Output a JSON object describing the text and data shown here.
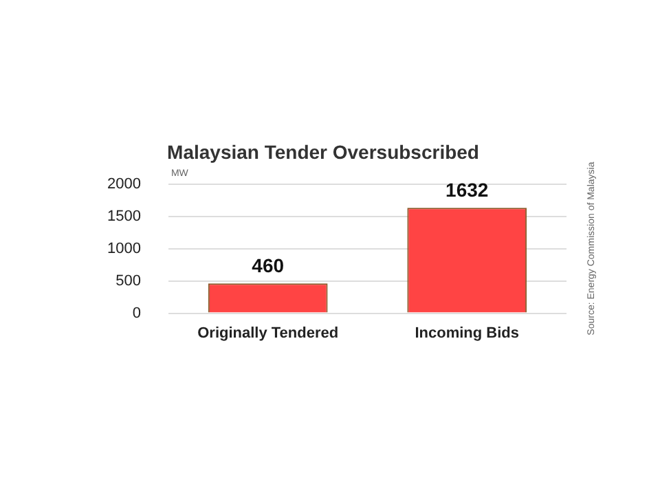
{
  "chart_data": {
    "type": "bar",
    "title": "Malaysian Tender Oversubscribed",
    "ylabel": "MW",
    "categories": [
      "Originally Tendered",
      "Incoming Bids"
    ],
    "values": [
      460,
      1632
    ],
    "color": "#ff4444",
    "ylim": [
      0,
      2000
    ],
    "yticks": [
      0,
      500,
      1000,
      1500,
      2000
    ],
    "grid": "y",
    "data_labels": true,
    "annotations": [
      "Source: Energy Commission of Malaysia"
    ]
  }
}
